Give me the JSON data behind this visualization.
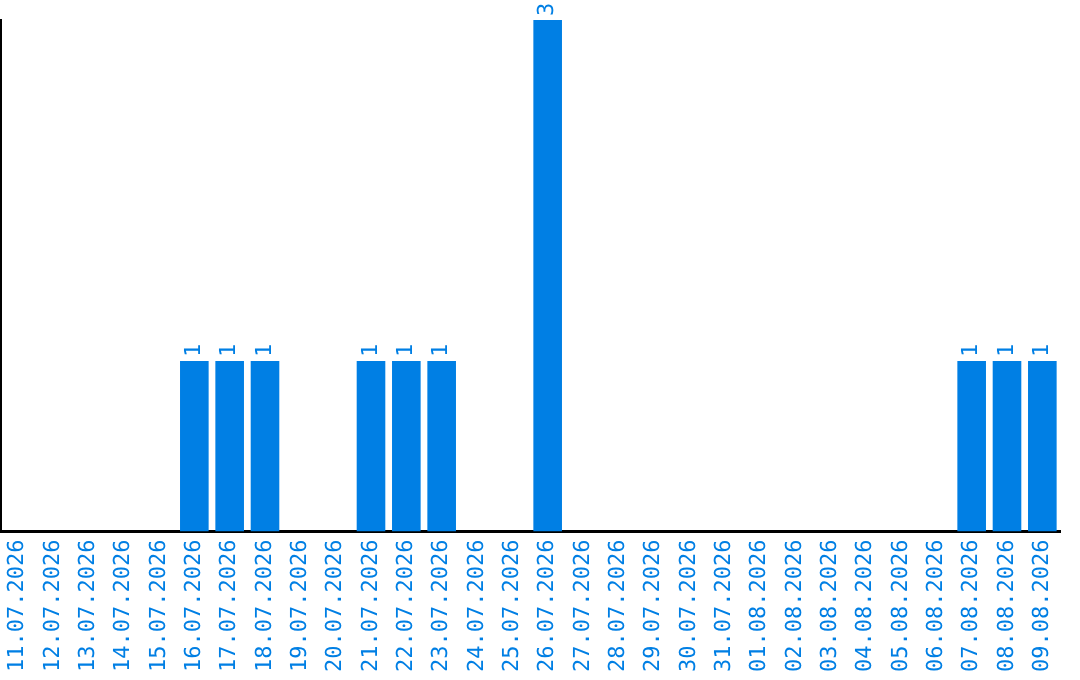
{
  "chart_data": {
    "type": "bar",
    "categories": [
      "11.07.2026",
      "12.07.2026",
      "13.07.2026",
      "14.07.2026",
      "15.07.2026",
      "16.07.2026",
      "17.07.2026",
      "18.07.2026",
      "19.07.2026",
      "20.07.2026",
      "21.07.2026",
      "22.07.2026",
      "23.07.2026",
      "24.07.2026",
      "25.07.2026",
      "26.07.2026",
      "27.07.2026",
      "28.07.2026",
      "29.07.2026",
      "30.07.2026",
      "31.07.2026",
      "01.08.2026",
      "02.08.2026",
      "03.08.2026",
      "04.08.2026",
      "05.08.2026",
      "06.08.2026",
      "07.08.2026",
      "08.08.2026",
      "09.08.2026"
    ],
    "values": [
      0,
      0,
      0,
      0,
      0,
      1,
      1,
      1,
      0,
      0,
      1,
      1,
      1,
      0,
      0,
      3,
      0,
      0,
      0,
      0,
      0,
      0,
      0,
      0,
      0,
      0,
      0,
      1,
      1,
      1
    ],
    "value_labels": [
      null,
      null,
      null,
      null,
      null,
      "1",
      "1",
      "1",
      null,
      null,
      "1",
      "1",
      "1",
      null,
      null,
      "3",
      null,
      null,
      null,
      null,
      null,
      null,
      null,
      null,
      null,
      null,
      null,
      "1",
      "1",
      "1"
    ],
    "color": "#007fe4",
    "tick_labels": "x",
    "grid": false,
    "legend": false
  }
}
